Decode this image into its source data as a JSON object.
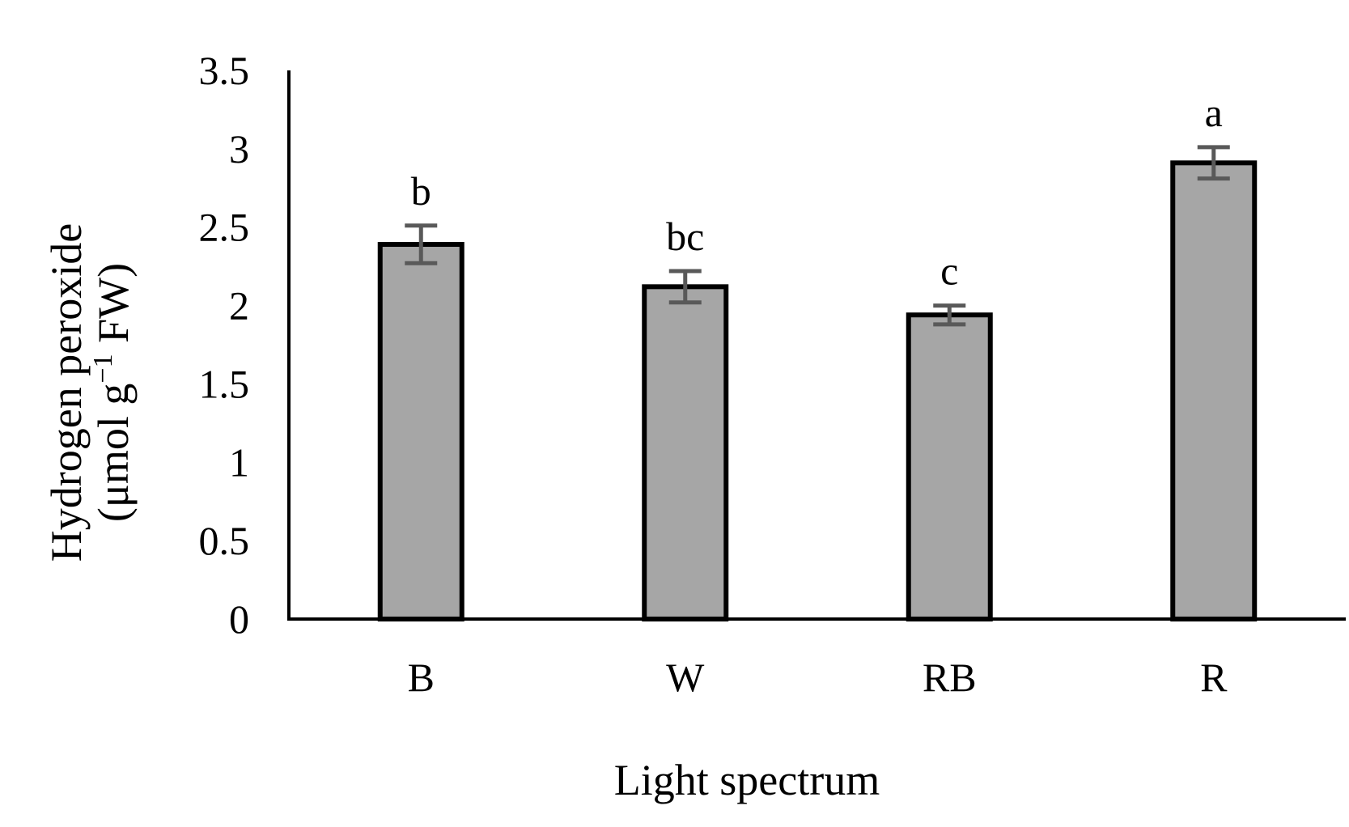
{
  "chart_data": {
    "type": "bar",
    "title": "",
    "xlabel": "Light spectrum",
    "ylabel": {
      "line1": "Hydrogen peroxide",
      "line2_prefix": "(μmol g",
      "line2_superscript": "−1",
      "line2_suffix": " FW)"
    },
    "categories": [
      "B",
      "W",
      "RB",
      "R"
    ],
    "values": [
      2.39,
      2.12,
      1.94,
      2.91
    ],
    "errors": [
      0.12,
      0.1,
      0.06,
      0.1
    ],
    "significance": [
      "b",
      "bc",
      "c",
      "a"
    ],
    "ylim": [
      0,
      3.5
    ],
    "yticks": [
      "0",
      "0.5",
      "1",
      "1.5",
      "2",
      "2.5",
      "3",
      "3.5"
    ],
    "grid": false,
    "legend": "none",
    "colors": {
      "bar_fill": "#a6a6a6",
      "bar_stroke": "#000000",
      "error_bar": "#595959",
      "axis": "#000000"
    }
  }
}
